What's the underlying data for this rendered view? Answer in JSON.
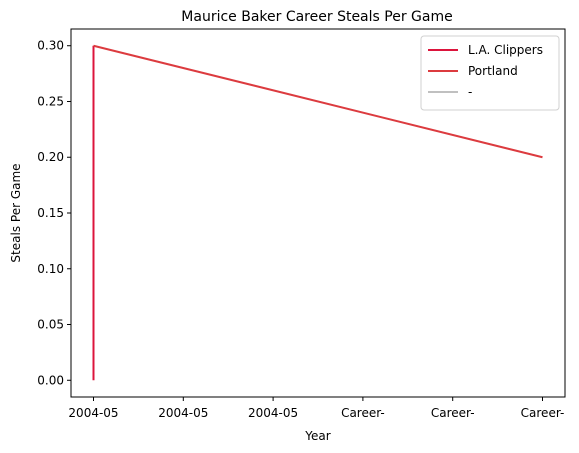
{
  "chart_data": {
    "type": "line",
    "title": "Maurice Baker Career Steals Per Game",
    "xlabel": "Year",
    "ylabel": "Steals Per Game",
    "categories": [
      "2004-05",
      "2004-05",
      "2004-05",
      "Career-",
      "Career-",
      "Career-"
    ],
    "ylim": [
      -0.015,
      0.315
    ],
    "yticks": [
      0.0,
      0.05,
      0.1,
      0.15,
      0.2,
      0.25,
      0.3
    ],
    "ytick_labels": [
      "0.00",
      "0.05",
      "0.10",
      "0.15",
      "0.20",
      "0.25",
      "0.30"
    ],
    "grid": false,
    "legend_position": "top-right",
    "series": [
      {
        "name": "L.A. Clippers",
        "color": "#dc143c",
        "points": [
          {
            "x": 0,
            "y": 0.0
          },
          {
            "x": 0,
            "y": 0.3
          }
        ]
      },
      {
        "name": "Portland",
        "color": "#dc3b3f",
        "points": [
          {
            "x": 0,
            "y": 0.3
          },
          {
            "x": 5,
            "y": 0.2
          }
        ]
      },
      {
        "name": "-",
        "color": "#c0c0c0",
        "points": []
      }
    ]
  }
}
